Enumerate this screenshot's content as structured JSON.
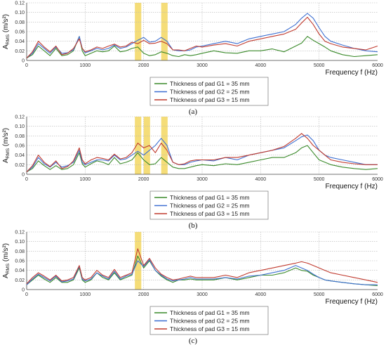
{
  "chart_data": [
    {
      "type": "line",
      "panel_label": "(a)",
      "ylabel_main": "A",
      "ylabel_sub": "RMS",
      "ylabel_unit": "(m/s²)",
      "xlabel": "Frequency f (Hz)",
      "xlim": [
        0,
        6000
      ],
      "ylim": [
        0,
        0.12
      ],
      "xticks": [
        "0",
        "1000",
        "2000",
        "3000",
        "4000",
        "5000",
        "6000"
      ],
      "yticks": [
        "0",
        "0.02",
        "0.04",
        "0.06",
        "0.08",
        "0.10",
        "0.12"
      ],
      "grid": true,
      "legend_position": "bottom-right",
      "highlight_color": "#f2d24b",
      "highlights": [
        [
          1850,
          1960
        ],
        [
          2300,
          2410
        ]
      ],
      "x": [
        0,
        100,
        200,
        300,
        400,
        500,
        600,
        700,
        800,
        900,
        950,
        1000,
        1100,
        1200,
        1300,
        1400,
        1500,
        1600,
        1700,
        1800,
        1900,
        2000,
        2100,
        2200,
        2300,
        2400,
        2500,
        2600,
        2700,
        2800,
        2900,
        3000,
        3200,
        3400,
        3600,
        3800,
        4000,
        4200,
        4400,
        4600,
        4700,
        4800,
        4900,
        5000,
        5100,
        5200,
        5400,
        5600,
        5800,
        6000
      ],
      "series": [
        {
          "name": "Thickness of  pad G1 = 35 mm",
          "color": "#3a8a2a",
          "values": [
            0.005,
            0.012,
            0.03,
            0.02,
            0.01,
            0.025,
            0.01,
            0.012,
            0.02,
            0.05,
            0.02,
            0.01,
            0.015,
            0.02,
            0.018,
            0.02,
            0.03,
            0.018,
            0.02,
            0.025,
            0.028,
            0.015,
            0.01,
            0.012,
            0.018,
            0.015,
            0.01,
            0.008,
            0.012,
            0.01,
            0.012,
            0.015,
            0.02,
            0.016,
            0.015,
            0.02,
            0.02,
            0.024,
            0.018,
            0.03,
            0.036,
            0.05,
            0.042,
            0.035,
            0.028,
            0.02,
            0.012,
            0.008,
            0.01,
            0.012
          ]
        },
        {
          "name": "Thickness of  pad G2 = 25 mm",
          "color": "#3d6fd1",
          "values": [
            0.005,
            0.015,
            0.035,
            0.025,
            0.015,
            0.028,
            0.015,
            0.016,
            0.022,
            0.05,
            0.025,
            0.016,
            0.02,
            0.025,
            0.022,
            0.025,
            0.032,
            0.025,
            0.028,
            0.035,
            0.042,
            0.048,
            0.038,
            0.04,
            0.048,
            0.04,
            0.022,
            0.02,
            0.02,
            0.022,
            0.028,
            0.03,
            0.035,
            0.04,
            0.035,
            0.045,
            0.05,
            0.055,
            0.06,
            0.075,
            0.088,
            0.098,
            0.088,
            0.068,
            0.05,
            0.04,
            0.032,
            0.025,
            0.02,
            0.018
          ]
        },
        {
          "name": "Thickness of  pad G3 = 15 mm",
          "color": "#c03a2e",
          "values": [
            0.005,
            0.018,
            0.04,
            0.028,
            0.018,
            0.03,
            0.012,
            0.015,
            0.025,
            0.045,
            0.025,
            0.018,
            0.022,
            0.028,
            0.025,
            0.03,
            0.034,
            0.028,
            0.03,
            0.038,
            0.035,
            0.042,
            0.035,
            0.036,
            0.04,
            0.035,
            0.022,
            0.022,
            0.02,
            0.025,
            0.03,
            0.028,
            0.032,
            0.035,
            0.03,
            0.04,
            0.045,
            0.05,
            0.055,
            0.065,
            0.078,
            0.09,
            0.075,
            0.055,
            0.04,
            0.035,
            0.028,
            0.025,
            0.022,
            0.03
          ]
        }
      ]
    },
    {
      "type": "line",
      "panel_label": "(b)",
      "ylabel_main": "A",
      "ylabel_sub": "RMS",
      "ylabel_unit": "(m/s²)",
      "xlabel": "Frequency f (Hz)",
      "xlim": [
        0,
        6000
      ],
      "ylim": [
        0,
        0.12
      ],
      "xticks": [
        "0",
        "1000",
        "2000",
        "3000",
        "4000",
        "5000",
        "6000"
      ],
      "yticks": [
        "0",
        "0.02",
        "0.04",
        "0.06",
        "0.08",
        "0.10",
        "0.12"
      ],
      "grid": true,
      "legend_position": "bottom-right",
      "highlight_color": "#f2d24b",
      "highlights": [
        [
          1850,
          1960
        ],
        [
          2000,
          2110
        ],
        [
          2300,
          2410
        ]
      ],
      "x": [
        0,
        100,
        200,
        300,
        400,
        500,
        600,
        700,
        800,
        900,
        950,
        1000,
        1100,
        1200,
        1300,
        1400,
        1500,
        1600,
        1700,
        1800,
        1900,
        2000,
        2100,
        2200,
        2300,
        2400,
        2500,
        2600,
        2700,
        2800,
        2900,
        3000,
        3200,
        3400,
        3600,
        3800,
        4000,
        4200,
        4400,
        4600,
        4700,
        4800,
        4900,
        5000,
        5100,
        5200,
        5400,
        5600,
        5800,
        6000
      ],
      "series": [
        {
          "name": "Thickness of  pad G1 = 35 mm",
          "color": "#3a8a2a",
          "values": [
            0.005,
            0.012,
            0.028,
            0.018,
            0.01,
            0.018,
            0.01,
            0.012,
            0.02,
            0.045,
            0.022,
            0.015,
            0.022,
            0.028,
            0.025,
            0.02,
            0.035,
            0.022,
            0.025,
            0.03,
            0.045,
            0.03,
            0.02,
            0.022,
            0.035,
            0.025,
            0.015,
            0.012,
            0.012,
            0.015,
            0.018,
            0.02,
            0.018,
            0.022,
            0.02,
            0.025,
            0.03,
            0.035,
            0.035,
            0.045,
            0.055,
            0.06,
            0.045,
            0.03,
            0.025,
            0.02,
            0.015,
            0.012,
            0.01,
            0.012
          ]
        },
        {
          "name": "Thickness of  pad G2 = 25 mm",
          "color": "#3d6fd1",
          "values": [
            0.005,
            0.015,
            0.035,
            0.022,
            0.015,
            0.025,
            0.015,
            0.018,
            0.025,
            0.05,
            0.025,
            0.02,
            0.025,
            0.03,
            0.03,
            0.028,
            0.04,
            0.03,
            0.032,
            0.04,
            0.048,
            0.04,
            0.05,
            0.06,
            0.075,
            0.06,
            0.025,
            0.02,
            0.02,
            0.025,
            0.028,
            0.03,
            0.028,
            0.035,
            0.03,
            0.04,
            0.045,
            0.05,
            0.055,
            0.07,
            0.078,
            0.082,
            0.07,
            0.05,
            0.04,
            0.035,
            0.03,
            0.025,
            0.02,
            0.02
          ]
        },
        {
          "name": "Thickness of  pad G3 = 15 mm",
          "color": "#c03a2e",
          "values": [
            0.005,
            0.018,
            0.04,
            0.025,
            0.016,
            0.028,
            0.012,
            0.016,
            0.028,
            0.055,
            0.03,
            0.022,
            0.03,
            0.035,
            0.033,
            0.03,
            0.042,
            0.032,
            0.035,
            0.045,
            0.065,
            0.055,
            0.06,
            0.045,
            0.065,
            0.05,
            0.025,
            0.02,
            0.022,
            0.028,
            0.03,
            0.03,
            0.03,
            0.035,
            0.035,
            0.04,
            0.045,
            0.05,
            0.058,
            0.075,
            0.085,
            0.075,
            0.06,
            0.05,
            0.04,
            0.03,
            0.025,
            0.022,
            0.02,
            0.02
          ]
        }
      ]
    },
    {
      "type": "line",
      "panel_label": "(c)",
      "ylabel_main": "A",
      "ylabel_sub": "RMS",
      "ylabel_unit": "(m/s²)",
      "xlabel": "Frequency f (Hz)",
      "xlim": [
        0,
        6000
      ],
      "ylim": [
        0,
        0.12
      ],
      "xticks": [
        "0",
        "1000",
        "2000",
        "3000",
        "4000",
        "5000",
        "6000"
      ],
      "yticks": [
        "0",
        "0.02",
        "0.04",
        "0.06",
        "0.08",
        "0.10",
        "0.12"
      ],
      "grid": true,
      "legend_position": "bottom-right",
      "highlight_color": "#f2d24b",
      "highlights": [
        [
          1850,
          1960
        ]
      ],
      "x": [
        0,
        100,
        200,
        300,
        400,
        500,
        600,
        700,
        800,
        900,
        950,
        1000,
        1100,
        1200,
        1300,
        1400,
        1500,
        1600,
        1700,
        1800,
        1900,
        2000,
        2100,
        2200,
        2300,
        2400,
        2500,
        2600,
        2700,
        2800,
        2900,
        3000,
        3200,
        3400,
        3600,
        3800,
        4000,
        4200,
        4400,
        4600,
        4700,
        4800,
        4900,
        5000,
        5100,
        5200,
        5400,
        5600,
        5800,
        6000
      ],
      "series": [
        {
          "name": "Thickness of  pad G1 = 35 mm",
          "color": "#3a8a2a",
          "values": [
            0.01,
            0.02,
            0.03,
            0.022,
            0.015,
            0.025,
            0.015,
            0.015,
            0.02,
            0.045,
            0.02,
            0.015,
            0.02,
            0.035,
            0.025,
            0.02,
            0.035,
            0.02,
            0.025,
            0.03,
            0.07,
            0.045,
            0.06,
            0.04,
            0.028,
            0.02,
            0.015,
            0.02,
            0.02,
            0.022,
            0.02,
            0.02,
            0.02,
            0.025,
            0.02,
            0.025,
            0.03,
            0.03,
            0.035,
            0.045,
            0.04,
            0.038,
            0.03,
            0.025,
            0.02,
            0.018,
            0.015,
            0.012,
            0.01,
            0.008
          ]
        },
        {
          "name": "Thickness of  pad G2 = 25 mm",
          "color": "#3d6fd1",
          "values": [
            0.01,
            0.022,
            0.032,
            0.025,
            0.018,
            0.028,
            0.016,
            0.018,
            0.022,
            0.048,
            0.022,
            0.018,
            0.022,
            0.035,
            0.028,
            0.022,
            0.038,
            0.022,
            0.028,
            0.032,
            0.06,
            0.048,
            0.062,
            0.04,
            0.03,
            0.022,
            0.018,
            0.02,
            0.022,
            0.025,
            0.022,
            0.022,
            0.022,
            0.025,
            0.022,
            0.028,
            0.03,
            0.035,
            0.04,
            0.05,
            0.045,
            0.04,
            0.032,
            0.025,
            0.02,
            0.018,
            0.015,
            0.012,
            0.01,
            0.01
          ]
        },
        {
          "name": "Thickness of  pad G3 = 15 mm",
          "color": "#c03a2e",
          "values": [
            0.012,
            0.025,
            0.035,
            0.028,
            0.02,
            0.03,
            0.018,
            0.02,
            0.025,
            0.05,
            0.025,
            0.02,
            0.025,
            0.04,
            0.03,
            0.025,
            0.042,
            0.025,
            0.03,
            0.035,
            0.085,
            0.05,
            0.065,
            0.045,
            0.032,
            0.025,
            0.02,
            0.022,
            0.025,
            0.028,
            0.025,
            0.025,
            0.025,
            0.03,
            0.025,
            0.035,
            0.04,
            0.045,
            0.05,
            0.055,
            0.058,
            0.055,
            0.05,
            0.045,
            0.04,
            0.035,
            0.03,
            0.025,
            0.02,
            0.015
          ]
        }
      ]
    }
  ]
}
